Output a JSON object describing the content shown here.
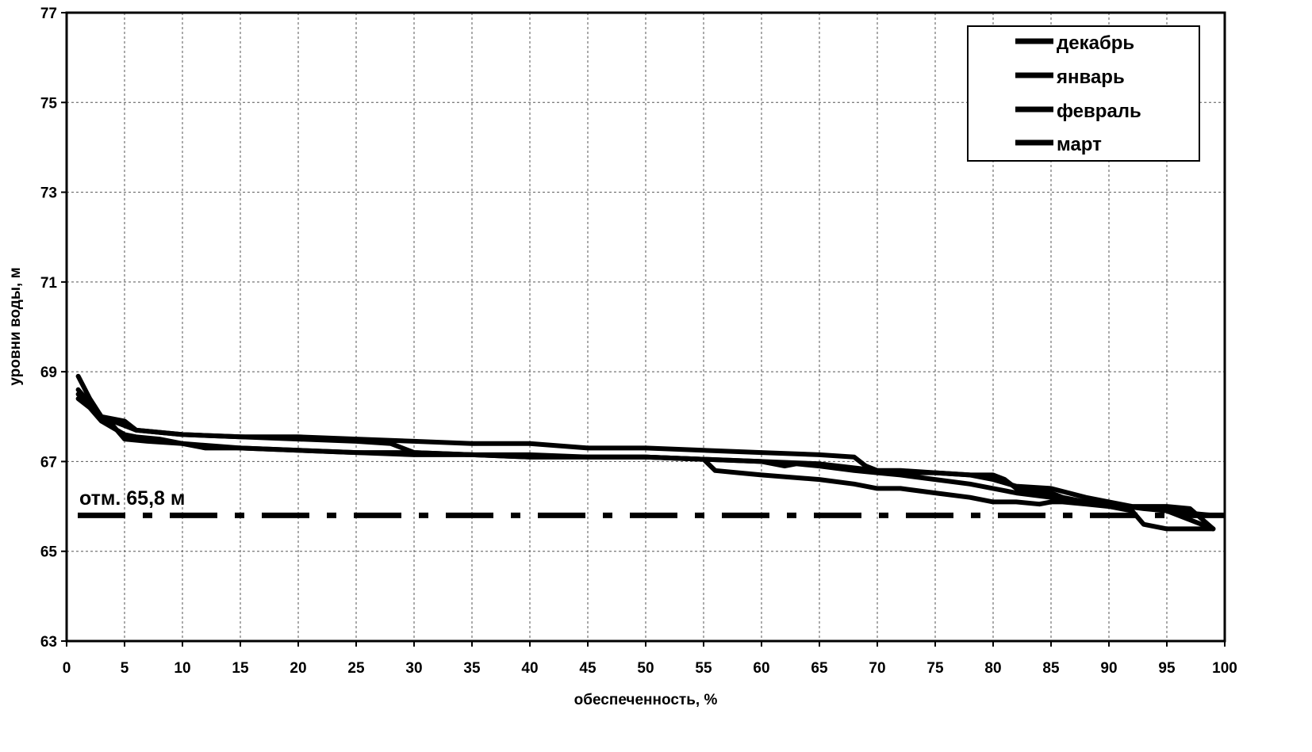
{
  "chart_data": {
    "type": "line",
    "xlabel": "обеспеченность, %",
    "ylabel": "уровни воды, м",
    "xlim": [
      0,
      100
    ],
    "ylim": [
      63,
      77
    ],
    "xticks": [
      "0",
      "5",
      "10",
      "15",
      "20",
      "25",
      "30",
      "35",
      "40",
      "45",
      "50",
      "55",
      "60",
      "65",
      "70",
      "75",
      "80",
      "85",
      "90",
      "95",
      "100"
    ],
    "yticks": [
      "63",
      "65",
      "67",
      "69",
      "71",
      "73",
      "75",
      "77"
    ],
    "grid": true,
    "legend_position": "top-right",
    "series": [
      {
        "name": "декабрь",
        "x": [
          1,
          2,
          3,
          5,
          6,
          8,
          10,
          15,
          20,
          25,
          30,
          35,
          40,
          45,
          50,
          55,
          60,
          65,
          68,
          69,
          70,
          72,
          75,
          78,
          80,
          82,
          85,
          88,
          90,
          92,
          95,
          97,
          99
        ],
        "y": [
          68.9,
          68.4,
          68.0,
          67.9,
          67.7,
          67.65,
          67.6,
          67.55,
          67.55,
          67.5,
          67.45,
          67.4,
          67.4,
          67.3,
          67.3,
          67.25,
          67.2,
          67.15,
          67.1,
          66.9,
          66.8,
          66.8,
          66.75,
          66.7,
          66.6,
          66.45,
          66.4,
          66.2,
          66.1,
          66.0,
          66.0,
          65.95,
          65.5
        ]
      },
      {
        "name": "январь",
        "x": [
          1,
          2,
          3,
          5,
          6,
          8,
          10,
          15,
          20,
          25,
          28,
          30,
          35,
          40,
          45,
          50,
          55,
          60,
          62,
          63,
          65,
          68,
          70,
          72,
          75,
          78,
          80,
          82,
          85,
          88,
          90,
          95,
          99
        ],
        "y": [
          68.5,
          68.3,
          68.0,
          67.8,
          67.7,
          67.65,
          67.6,
          67.55,
          67.5,
          67.45,
          67.4,
          67.2,
          67.15,
          67.15,
          67.1,
          67.1,
          67.05,
          67.0,
          66.9,
          66.95,
          66.9,
          66.8,
          66.75,
          66.7,
          66.6,
          66.5,
          66.4,
          66.3,
          66.2,
          66.1,
          66.05,
          65.9,
          65.5
        ]
      },
      {
        "name": "февраль",
        "x": [
          1,
          2,
          3,
          4,
          5,
          7,
          10,
          15,
          20,
          25,
          30,
          35,
          40,
          45,
          50,
          55,
          56,
          58,
          60,
          65,
          68,
          70,
          72,
          75,
          78,
          80,
          82,
          84,
          85,
          86,
          88,
          90,
          92,
          93,
          95,
          99
        ],
        "y": [
          68.6,
          68.3,
          68.0,
          67.8,
          67.5,
          67.45,
          67.4,
          67.3,
          67.25,
          67.2,
          67.2,
          67.15,
          67.1,
          67.1,
          67.1,
          67.05,
          66.8,
          66.75,
          66.7,
          66.6,
          66.5,
          66.4,
          66.4,
          66.3,
          66.2,
          66.1,
          66.1,
          66.05,
          66.1,
          66.1,
          66.05,
          66.0,
          65.9,
          65.6,
          65.5,
          65.5
        ]
      },
      {
        "name": "март",
        "x": [
          1,
          2,
          3,
          5,
          6,
          8,
          10,
          12,
          15,
          20,
          25,
          30,
          35,
          40,
          45,
          50,
          55,
          60,
          65,
          70,
          72,
          75,
          78,
          80,
          81,
          82,
          83,
          85,
          86,
          88,
          90,
          93,
          95,
          97,
          99
        ],
        "y": [
          68.4,
          68.2,
          67.9,
          67.6,
          67.55,
          67.5,
          67.4,
          67.3,
          67.3,
          67.25,
          67.2,
          67.15,
          67.15,
          67.1,
          67.1,
          67.1,
          67.05,
          67.0,
          66.95,
          66.8,
          66.75,
          66.75,
          66.7,
          66.7,
          66.6,
          66.4,
          66.35,
          66.3,
          66.2,
          66.1,
          66.05,
          65.95,
          65.9,
          65.85,
          65.8
        ]
      }
    ],
    "reference_line": {
      "y": 65.8,
      "label": "отм. 65,8 м",
      "style": "dash-dot"
    }
  }
}
